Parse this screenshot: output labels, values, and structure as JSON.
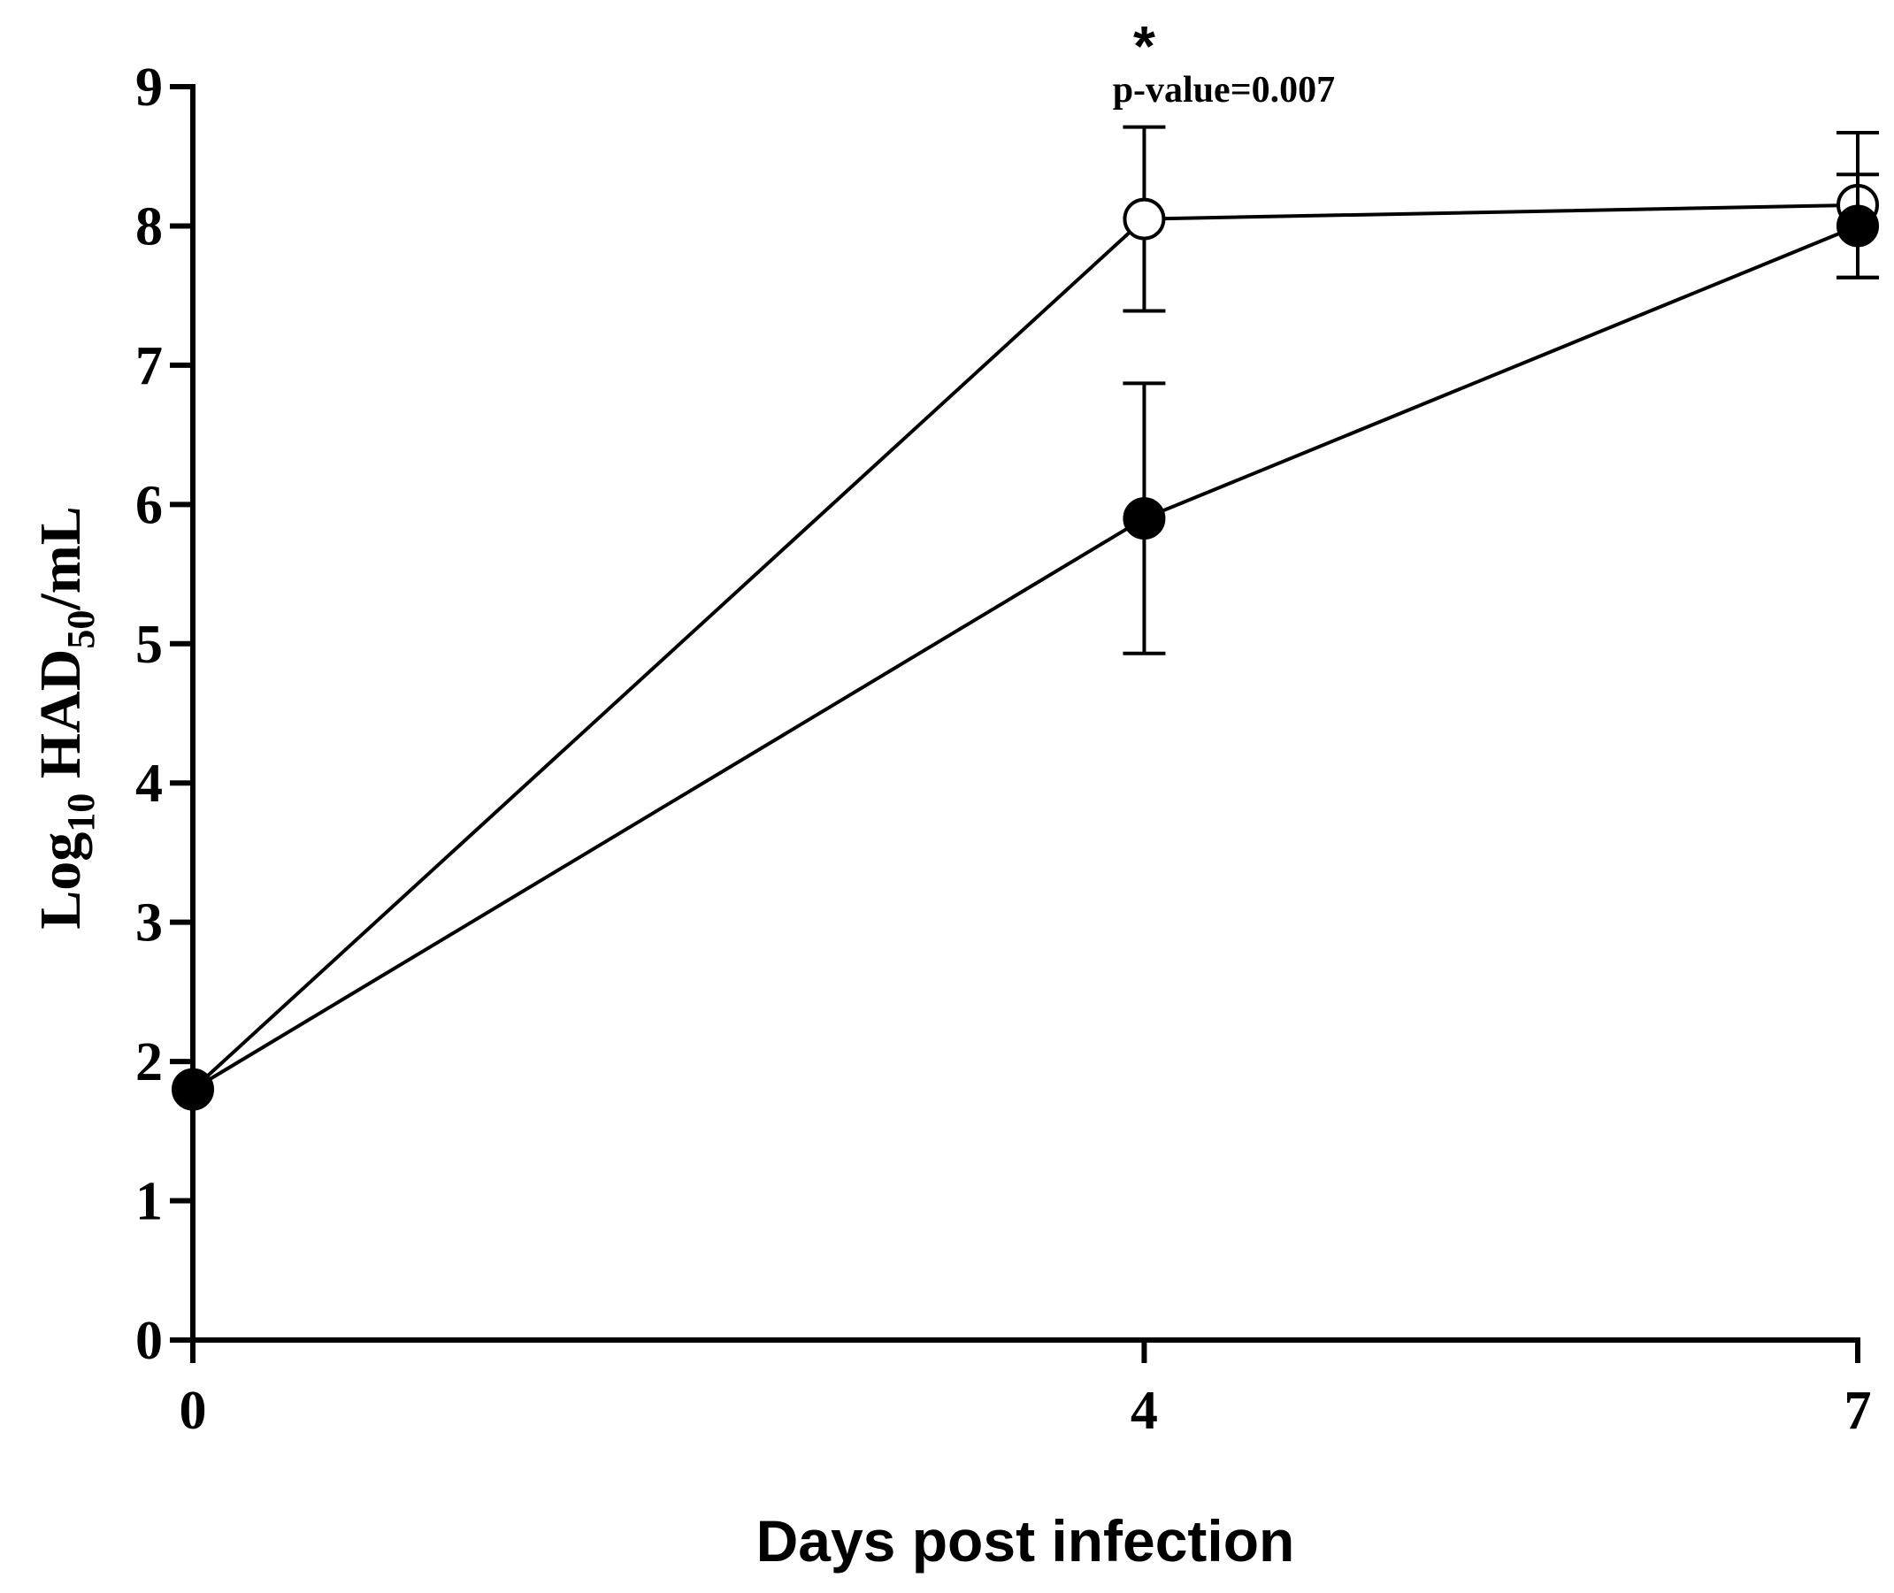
{
  "chart_data": {
    "type": "line",
    "title": "",
    "xlabel": "Days post infection",
    "ylabel": {
      "prefix": "Log",
      "prefix_sub": "10",
      "middle": " HAD",
      "middle_sub": "50",
      "suffix": "/mL"
    },
    "x": [
      0,
      4,
      7
    ],
    "x_tick_labels": [
      "0",
      "4",
      "7"
    ],
    "xlim": [
      0,
      7
    ],
    "y_ticks": [
      0,
      1,
      2,
      3,
      4,
      5,
      6,
      7,
      8,
      9
    ],
    "y_tick_labels": [
      "0",
      "1",
      "2",
      "3",
      "4",
      "5",
      "6",
      "7",
      "8",
      "9"
    ],
    "ylim": [
      0,
      9
    ],
    "grid": false,
    "legend": "none",
    "series": [
      {
        "marker": "open-circle",
        "color": "#000000",
        "values": [
          1.8,
          8.05,
          8.15
        ],
        "errors": [
          null,
          0.66,
          0.52
        ]
      },
      {
        "marker": "filled-circle",
        "color": "#000000",
        "values": [
          1.8,
          5.9,
          8.0
        ],
        "errors": [
          null,
          0.97,
          0.37
        ]
      }
    ],
    "annotations": [
      {
        "x": 4,
        "star": "*",
        "text": "p-value=0.007"
      }
    ]
  }
}
